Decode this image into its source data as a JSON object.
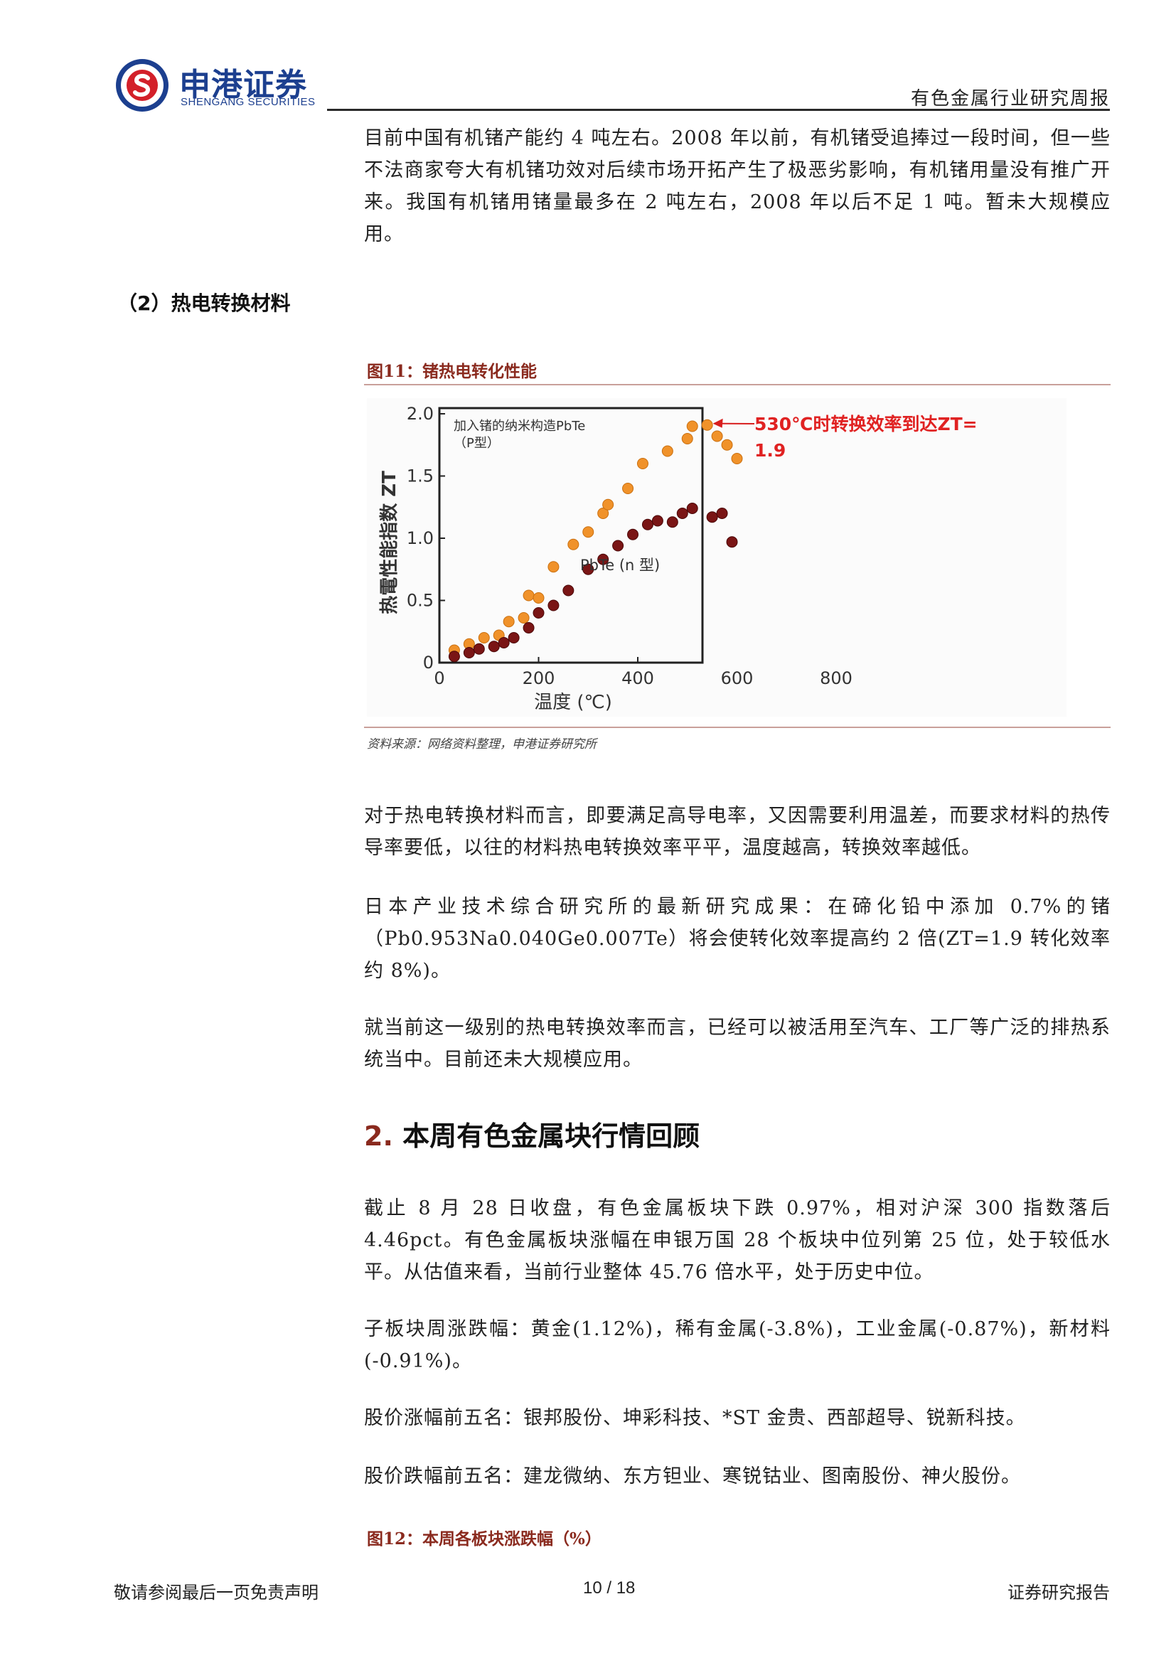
{
  "header": {
    "logo_cn": "申港证券",
    "logo_en": "SHENGANG SECURITIES",
    "report_type": "有色金属行业研究周报"
  },
  "intro_paragraph": "目前中国有机锗产能约 4 吨左右。2008 年以前，有机锗受追捧过一段时间，但一些不法商家夸大有机锗功效对后续市场开拓产生了极恶劣影响，有机锗用量没有推广开来。我国有机锗用锗量最多在 2 吨左右，2008 年以后不足 1 吨。暂未大规模应用。",
  "subheading": "（2）热电转换材料",
  "figure11": {
    "title": "图11：锗热电转化性能",
    "source": "资料来源：网络资料整理，申港证券研究所"
  },
  "chart_data": {
    "type": "scatter",
    "title": "",
    "xlabel": "温度 (℃)",
    "ylabel": "热電性能指数 ZT",
    "xlim": [
      0,
      800
    ],
    "ylim": [
      0,
      2.0
    ],
    "xticks": [
      "0",
      "200",
      "400",
      "600",
      "800"
    ],
    "yticks": [
      "0",
      "0.5",
      "1.0",
      "1.5",
      "2.0"
    ],
    "series": [
      {
        "name": "加入锗的纳米构造PbTe（P型）",
        "color": "#f0922a",
        "points": [
          [
            30,
            0.1
          ],
          [
            60,
            0.15
          ],
          [
            90,
            0.2
          ],
          [
            120,
            0.22
          ],
          [
            140,
            0.33
          ],
          [
            170,
            0.36
          ],
          [
            180,
            0.54
          ],
          [
            200,
            0.52
          ],
          [
            230,
            0.77
          ],
          [
            270,
            0.95
          ],
          [
            300,
            1.05
          ],
          [
            330,
            1.2
          ],
          [
            340,
            1.27
          ],
          [
            380,
            1.4
          ],
          [
            410,
            1.6
          ],
          [
            460,
            1.7
          ],
          [
            500,
            1.8
          ],
          [
            510,
            1.9
          ],
          [
            540,
            1.91
          ],
          [
            560,
            1.82
          ],
          [
            580,
            1.75
          ],
          [
            600,
            1.64
          ]
        ]
      },
      {
        "name": "PbTe (n 型)",
        "color": "#7a1515",
        "points": [
          [
            30,
            0.05
          ],
          [
            60,
            0.08
          ],
          [
            80,
            0.11
          ],
          [
            110,
            0.13
          ],
          [
            130,
            0.16
          ],
          [
            150,
            0.2
          ],
          [
            180,
            0.28
          ],
          [
            200,
            0.4
          ],
          [
            230,
            0.46
          ],
          [
            260,
            0.58
          ],
          [
            300,
            0.75
          ],
          [
            330,
            0.83
          ],
          [
            360,
            0.94
          ],
          [
            390,
            1.03
          ],
          [
            420,
            1.11
          ],
          [
            440,
            1.14
          ],
          [
            470,
            1.13
          ],
          [
            490,
            1.2
          ],
          [
            510,
            1.24
          ],
          [
            550,
            1.17
          ],
          [
            570,
            1.2
          ],
          [
            590,
            0.97
          ]
        ]
      }
    ],
    "legend_placement": "top-left",
    "annotations": {
      "zt_note_line1": "530℃时转换效率到达ZT=",
      "zt_note_line2": "1.9"
    },
    "grid": false
  },
  "paragraphs": [
    "对于热电转换材料而言，即要满足高导电率，又因需要利用温差，而要求材料的热传导率要低，以往的材料热电转换效率平平，温度越高，转换效率越低。",
    "日本产业技术综合研究所的最新研究成果：在碲化铅中添加 0.7%的锗（Pb0.953Na0.040Ge0.007Te）将会使转化效率提高约 2 倍(ZT=1.9 转化效率约 8%)。",
    "就当前这一级别的热电转换效率而言，已经可以被活用至汽车、工厂等广泛的排热系统当中。目前还未大规模应用。"
  ],
  "section2": {
    "number": "2.",
    "title": "本周有色金属块行情回顾"
  },
  "section2_paragraphs": [
    "截止 8 月 28 日收盘，有色金属板块下跌 0.97%，相对沪深 300 指数落后 4.46pct。有色金属板块涨幅在申银万国 28 个板块中位列第 25 位，处于较低水平。从估值来看，当前行业整体 45.76 倍水平，处于历史中位。",
    "子板块周涨跌幅：黄金(1.12%)，稀有金属(-3.8%)，工业金属(-0.87%)，新材料(-0.91%)。",
    "股价涨幅前五名：银邦股份、坤彩科技、*ST 金贵、西部超导、锐新科技。",
    "股价跌幅前五名：建龙微纳、东方钽业、寒锐钴业、图南股份、神火股份。"
  ],
  "figure12": {
    "title": "图12：本周各板块涨跌幅（%）"
  },
  "footer": {
    "left": "敬请参阅最后一页免责声明",
    "page": "10 / 18",
    "right": "证券研究报告"
  }
}
